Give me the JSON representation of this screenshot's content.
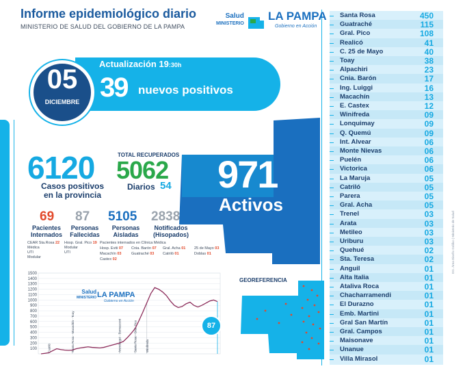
{
  "header": {
    "title": "Informe epidemiológico diario",
    "subtitle": "MINISTERIO DE SALUD DEL GOBIERNO DE LA PAMPA",
    "logo_salud": "Salud",
    "logo_ministerio": "MINISTERIO",
    "logo_brand": "LA PAMPA",
    "logo_tagline": "Gobierno en Acción"
  },
  "date": {
    "day": "05",
    "month": "DICIEMBRE",
    "update_label": "Actualización 19",
    "update_minutes": ":30h",
    "new_positive_count": "39",
    "new_positive_label": "nuevos positivos"
  },
  "stats": {
    "casos_positivos": "6120",
    "casos_label_1": "Casos positivos",
    "casos_label_2": "en la provincia",
    "total_recuperados_label": "TOTAL RECUPERADOS",
    "total_recuperados": "5062",
    "diarios_label": "Diarios",
    "diarios": "54",
    "activos": "971",
    "activos_label": "Activos",
    "internados": "69",
    "internados_label_1": "Pacientes",
    "internados_label_2": "Internados",
    "fallecidas": "87",
    "fallecidas_label_1": "Personas",
    "fallecidas_label_2": "Fallecidas",
    "aisladas": "5105",
    "aisladas_label_1": "Personas",
    "aisladas_label_2": "Aisladas",
    "notificados": "28387",
    "notificados_label_1": "Notificados",
    "notificados_label_2": "(Hisopados)"
  },
  "internados_info": {
    "cear": "CEAR Sta.Rosa",
    "cear_val": "22",
    "medica": "Médica",
    "uti": "UTI",
    "modular": "Modular",
    "hosp_pico": "Hosp. Gral. Pico",
    "hosp_pico_val": "19",
    "modular2": "Modular",
    "uti2": "UTI",
    "clinica_header": "Pacientes internados en Clínica Médica",
    "rows": [
      {
        "label": "Hosp. Eviti",
        "val": "07"
      },
      {
        "label": "Cnia. Barón",
        "val": "07"
      },
      {
        "label": "Gral. Acha",
        "val": "01"
      },
      {
        "label": "25 de Mayo",
        "val": "03"
      },
      {
        "label": "Macachín",
        "val": "03"
      },
      {
        "label": "Guatraché",
        "val": "03"
      },
      {
        "label": "Catriló",
        "val": "01"
      },
      {
        "label": "Doblas",
        "val": "01"
      },
      {
        "label": "Castex",
        "val": "02"
      }
    ]
  },
  "chart_logo": {
    "salud": "Salud",
    "ministerio": "MINISTERIO",
    "brand": "LA PAMPA",
    "tagline": "Gobierno en Acción"
  },
  "chart_data": {
    "type": "line",
    "title": "",
    "xlabel": "",
    "ylabel": "",
    "ylim": [
      0,
      1500
    ],
    "yticks": [
      "1500",
      "1400",
      "1300",
      "1200",
      "1100",
      "1000",
      "900",
      "800",
      "700",
      "600",
      "500",
      "400",
      "300",
      "200",
      "100"
    ],
    "annotations": [
      "Catriló",
      "Santa Rosa - Macachín - Toay",
      "Anzoátegui - Bernasconi",
      "Santa Rosa - Gral. Pico",
      "Winifreda"
    ],
    "end_badge": "87",
    "series": [
      {
        "values": [
          0,
          10,
          20,
          60,
          95,
          80,
          70,
          65,
          70,
          95,
          110,
          120,
          130,
          120,
          115,
          110,
          120,
          140,
          160,
          180,
          200,
          230,
          300,
          380,
          470,
          620,
          780,
          950,
          1120,
          1230,
          1200,
          1150,
          1080,
          980,
          900,
          860,
          880,
          930,
          960,
          900,
          870,
          900,
          940,
          980,
          1000,
          970
        ]
      }
    ]
  },
  "georef": {
    "label": "GEOREFERENCIA"
  },
  "districts": [
    {
      "name": "Santa Rosa",
      "value": "450"
    },
    {
      "name": "Guatraché",
      "value": "115"
    },
    {
      "name": "Gral. Pico",
      "value": "108"
    },
    {
      "name": "Realicó",
      "value": "41"
    },
    {
      "name": "C. 25 de Mayo",
      "value": "40"
    },
    {
      "name": "Toay",
      "value": "38"
    },
    {
      "name": "Alpachiri",
      "value": "23"
    },
    {
      "name": "Cnia. Barón",
      "value": "17"
    },
    {
      "name": "Ing. Luiggi",
      "value": "16"
    },
    {
      "name": "Macachín",
      "value": "13"
    },
    {
      "name": "E. Castex",
      "value": "12"
    },
    {
      "name": "Winifreda",
      "value": "09"
    },
    {
      "name": "Lonquimay",
      "value": "09"
    },
    {
      "name": "Q. Quemú",
      "value": "09"
    },
    {
      "name": "Int. Alvear",
      "value": "06"
    },
    {
      "name": "Monte Nievas",
      "value": "06"
    },
    {
      "name": "Puelén",
      "value": "06"
    },
    {
      "name": "Victorica",
      "value": "06"
    },
    {
      "name": "La Maruja",
      "value": "05"
    },
    {
      "name": "Catriló",
      "value": "05"
    },
    {
      "name": "Parera",
      "value": "05"
    },
    {
      "name": "Gral. Acha",
      "value": "05"
    },
    {
      "name": "Trenel",
      "value": "03"
    },
    {
      "name": "Arata",
      "value": "03"
    },
    {
      "name": "Metileo",
      "value": "03"
    },
    {
      "name": "Uriburu",
      "value": "03"
    },
    {
      "name": "Quehué",
      "value": "02"
    },
    {
      "name": "Sta. Teresa",
      "value": "02"
    },
    {
      "name": "Anguil",
      "value": "01"
    },
    {
      "name": "Alta Italia",
      "value": "01"
    },
    {
      "name": "Ataliva Roca",
      "value": "01"
    },
    {
      "name": "Chacharramendi",
      "value": "01"
    },
    {
      "name": "El Durazno",
      "value": "01"
    },
    {
      "name": "Emb. Martini",
      "value": "01"
    },
    {
      "name": "Gral San Martín",
      "value": "01"
    },
    {
      "name": "Gral. Campos",
      "value": "01"
    },
    {
      "name": "Maisonave",
      "value": "01"
    },
    {
      "name": "Unanue",
      "value": "01"
    },
    {
      "name": "Villa Mirasol",
      "value": "01"
    }
  ],
  "credit": "DG. Área Diseño Gráfico | Ministerio de Salud",
  "colors": {
    "accent": "#15b2e8",
    "navy": "#1a4f8a",
    "green": "#2aa84a",
    "red": "#e2492b",
    "chart_line": "#8c2c5a"
  }
}
